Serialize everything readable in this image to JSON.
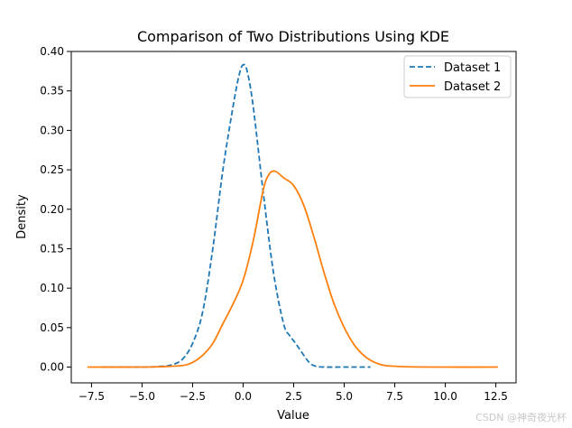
{
  "chart_data": {
    "type": "line",
    "title": "Comparison of Two Distributions Using KDE",
    "xlabel": "Value",
    "ylabel": "Density",
    "xlim": [
      -8.5,
      13.5
    ],
    "ylim": [
      -0.02,
      0.4
    ],
    "xticks": [
      -7.5,
      -5.0,
      -2.5,
      0.0,
      2.5,
      5.0,
      7.5,
      10.0,
      12.5
    ],
    "yticks": [
      0.0,
      0.05,
      0.1,
      0.15,
      0.2,
      0.25,
      0.3,
      0.35,
      0.4
    ],
    "xtick_labels": [
      "−7.5",
      "−5.0",
      "−2.5",
      "0.0",
      "2.5",
      "5.0",
      "7.5",
      "10.0",
      "12.5"
    ],
    "ytick_labels": [
      "0.00",
      "0.05",
      "0.10",
      "0.15",
      "0.20",
      "0.25",
      "0.30",
      "0.35",
      "0.40"
    ],
    "grid": false,
    "legend_position": "top-right",
    "series": [
      {
        "name": "Dataset 1",
        "color": "#1f77b4",
        "style": "dashed",
        "x": [
          -7.0,
          -5.0,
          -4.0,
          -3.5,
          -3.0,
          -2.5,
          -2.0,
          -1.5,
          -1.0,
          -0.5,
          -0.2,
          0.0,
          0.2,
          0.5,
          1.0,
          1.5,
          2.0,
          2.3,
          2.6,
          3.0,
          3.3,
          3.6,
          4.0,
          5.0,
          6.3
        ],
        "y": [
          0.0,
          0.0,
          0.001,
          0.003,
          0.01,
          0.03,
          0.07,
          0.15,
          0.25,
          0.33,
          0.37,
          0.383,
          0.375,
          0.33,
          0.22,
          0.12,
          0.055,
          0.04,
          0.03,
          0.015,
          0.005,
          0.001,
          0.0,
          0.0,
          0.0
        ]
      },
      {
        "name": "Dataset 2",
        "color": "#ff7f0e",
        "style": "solid",
        "x": [
          -7.7,
          -5.0,
          -4.0,
          -3.0,
          -2.5,
          -2.0,
          -1.5,
          -1.0,
          -0.5,
          0.0,
          0.5,
          1.0,
          1.3,
          1.6,
          2.0,
          2.5,
          3.0,
          3.5,
          4.0,
          4.5,
          5.0,
          5.5,
          6.0,
          6.5,
          7.0,
          8.0,
          10.0,
          12.6
        ],
        "y": [
          0.0,
          0.0,
          0.0005,
          0.002,
          0.006,
          0.015,
          0.03,
          0.055,
          0.08,
          0.11,
          0.16,
          0.225,
          0.245,
          0.248,
          0.24,
          0.23,
          0.205,
          0.165,
          0.12,
          0.08,
          0.05,
          0.028,
          0.014,
          0.006,
          0.002,
          0.0005,
          0.0,
          0.0
        ]
      }
    ]
  },
  "watermark": "CSDN @神奇夜光杯"
}
